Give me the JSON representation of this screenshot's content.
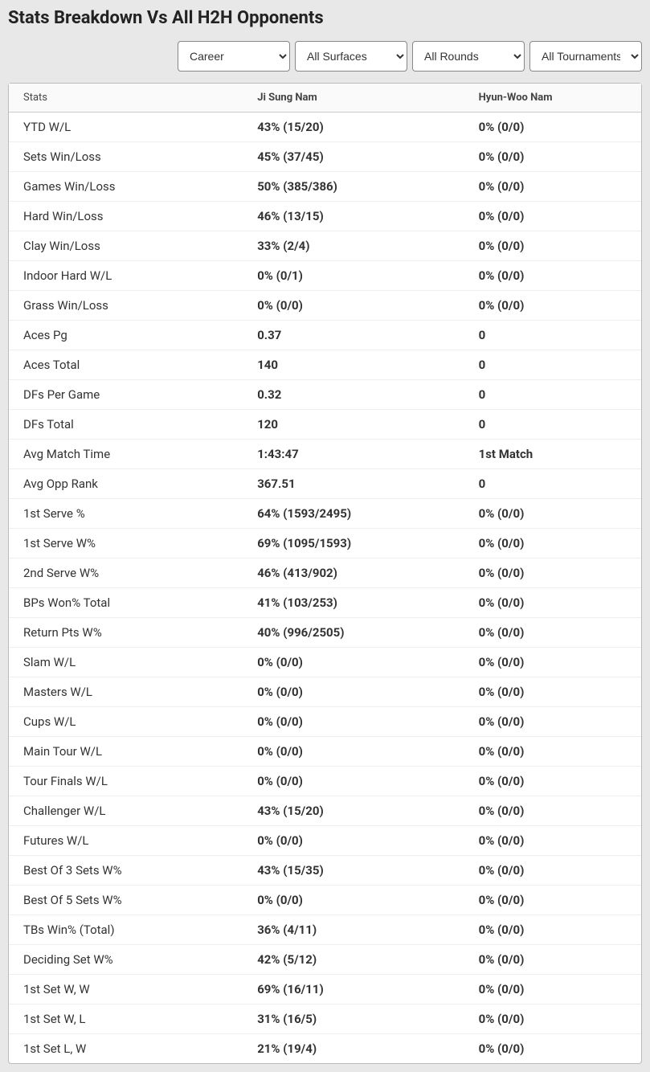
{
  "title": "Stats Breakdown Vs All H2H Opponents",
  "filters": {
    "career": "Career",
    "surfaces": "All Surfaces",
    "rounds": "All Rounds",
    "tournaments": "All Tournaments"
  },
  "headers": {
    "stats": "Stats",
    "p1": "Ji Sung Nam",
    "p2": "Hyun-Woo Nam"
  },
  "rows": [
    {
      "stat": "YTD W/L",
      "p1": "43% (15/20)",
      "p2": "0% (0/0)"
    },
    {
      "stat": "Sets Win/Loss",
      "p1": "45% (37/45)",
      "p2": "0% (0/0)"
    },
    {
      "stat": "Games Win/Loss",
      "p1": "50% (385/386)",
      "p2": "0% (0/0)"
    },
    {
      "stat": "Hard Win/Loss",
      "p1": "46% (13/15)",
      "p2": "0% (0/0)"
    },
    {
      "stat": "Clay Win/Loss",
      "p1": "33% (2/4)",
      "p2": "0% (0/0)"
    },
    {
      "stat": "Indoor Hard W/L",
      "p1": "0% (0/1)",
      "p2": "0% (0/0)"
    },
    {
      "stat": "Grass Win/Loss",
      "p1": "0% (0/0)",
      "p2": "0% (0/0)"
    },
    {
      "stat": "Aces Pg",
      "p1": "0.37",
      "p2": "0"
    },
    {
      "stat": "Aces Total",
      "p1": "140",
      "p2": "0"
    },
    {
      "stat": "DFs Per Game",
      "p1": "0.32",
      "p2": "0"
    },
    {
      "stat": "DFs Total",
      "p1": "120",
      "p2": "0"
    },
    {
      "stat": "Avg Match Time",
      "p1": "1:43:47",
      "p2": "1st Match"
    },
    {
      "stat": "Avg Opp Rank",
      "p1": "367.51",
      "p2": "0"
    },
    {
      "stat": "1st Serve %",
      "p1": "64% (1593/2495)",
      "p2": "0% (0/0)"
    },
    {
      "stat": "1st Serve W%",
      "p1": "69% (1095/1593)",
      "p2": "0% (0/0)"
    },
    {
      "stat": "2nd Serve W%",
      "p1": "46% (413/902)",
      "p2": "0% (0/0)"
    },
    {
      "stat": "BPs Won% Total",
      "p1": "41% (103/253)",
      "p2": "0% (0/0)"
    },
    {
      "stat": "Return Pts W%",
      "p1": "40% (996/2505)",
      "p2": "0% (0/0)"
    },
    {
      "stat": "Slam W/L",
      "p1": "0% (0/0)",
      "p2": "0% (0/0)"
    },
    {
      "stat": "Masters W/L",
      "p1": "0% (0/0)",
      "p2": "0% (0/0)"
    },
    {
      "stat": "Cups W/L",
      "p1": "0% (0/0)",
      "p2": "0% (0/0)"
    },
    {
      "stat": "Main Tour W/L",
      "p1": "0% (0/0)",
      "p2": "0% (0/0)"
    },
    {
      "stat": "Tour Finals W/L",
      "p1": "0% (0/0)",
      "p2": "0% (0/0)"
    },
    {
      "stat": "Challenger W/L",
      "p1": "43% (15/20)",
      "p2": "0% (0/0)"
    },
    {
      "stat": "Futures W/L",
      "p1": "0% (0/0)",
      "p2": "0% (0/0)"
    },
    {
      "stat": "Best Of 3 Sets W%",
      "p1": "43% (15/35)",
      "p2": "0% (0/0)"
    },
    {
      "stat": "Best Of 5 Sets W%",
      "p1": "0% (0/0)",
      "p2": "0% (0/0)"
    },
    {
      "stat": "TBs Win% (Total)",
      "p1": "36% (4/11)",
      "p2": "0% (0/0)"
    },
    {
      "stat": "Deciding Set W%",
      "p1": "42% (5/12)",
      "p2": "0% (0/0)"
    },
    {
      "stat": "1st Set W, W",
      "p1": "69% (16/11)",
      "p2": "0% (0/0)"
    },
    {
      "stat": "1st Set W, L",
      "p1": "31% (16/5)",
      "p2": "0% (0/0)"
    },
    {
      "stat": "1st Set L, W",
      "p1": "21% (19/4)",
      "p2": "0% (0/0)"
    }
  ]
}
